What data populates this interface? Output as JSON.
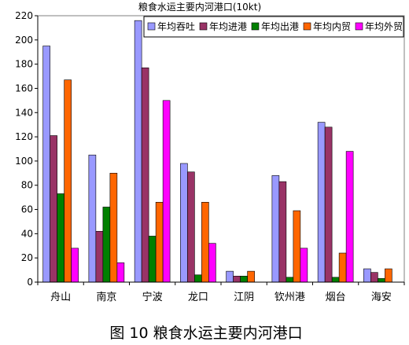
{
  "caption": "图 10 粮食水运主要内河港口",
  "chart_data": {
    "type": "bar",
    "title": "粮食水运主要内河港口(10kt)",
    "categories": [
      "舟山",
      "南京",
      "宁波",
      "龙口",
      "江阴",
      "钦州港",
      "烟台",
      "海安"
    ],
    "ylim": [
      0,
      220
    ],
    "yticks": [
      0,
      20,
      40,
      60,
      80,
      100,
      120,
      140,
      160,
      180,
      200,
      220
    ],
    "grid": false,
    "legend_position": "top-right",
    "series": [
      {
        "name": "年均吞吐",
        "color": "#9999ff",
        "values": [
          195,
          105,
          216,
          98,
          9,
          88,
          132,
          11
        ]
      },
      {
        "name": "年均进港",
        "color": "#993366",
        "values": [
          121,
          42,
          177,
          91,
          5,
          83,
          128,
          8
        ]
      },
      {
        "name": "年均出港",
        "color": "#008000",
        "values": [
          73,
          62,
          38,
          6,
          5,
          4,
          4,
          3
        ]
      },
      {
        "name": "年均内贸",
        "color": "#ff6600",
        "values": [
          167,
          90,
          66,
          66,
          9,
          59,
          24,
          11
        ]
      },
      {
        "name": "年均外贸",
        "color": "#ff00ff",
        "values": [
          28,
          16,
          150,
          32,
          0,
          28,
          108,
          0
        ]
      }
    ]
  }
}
